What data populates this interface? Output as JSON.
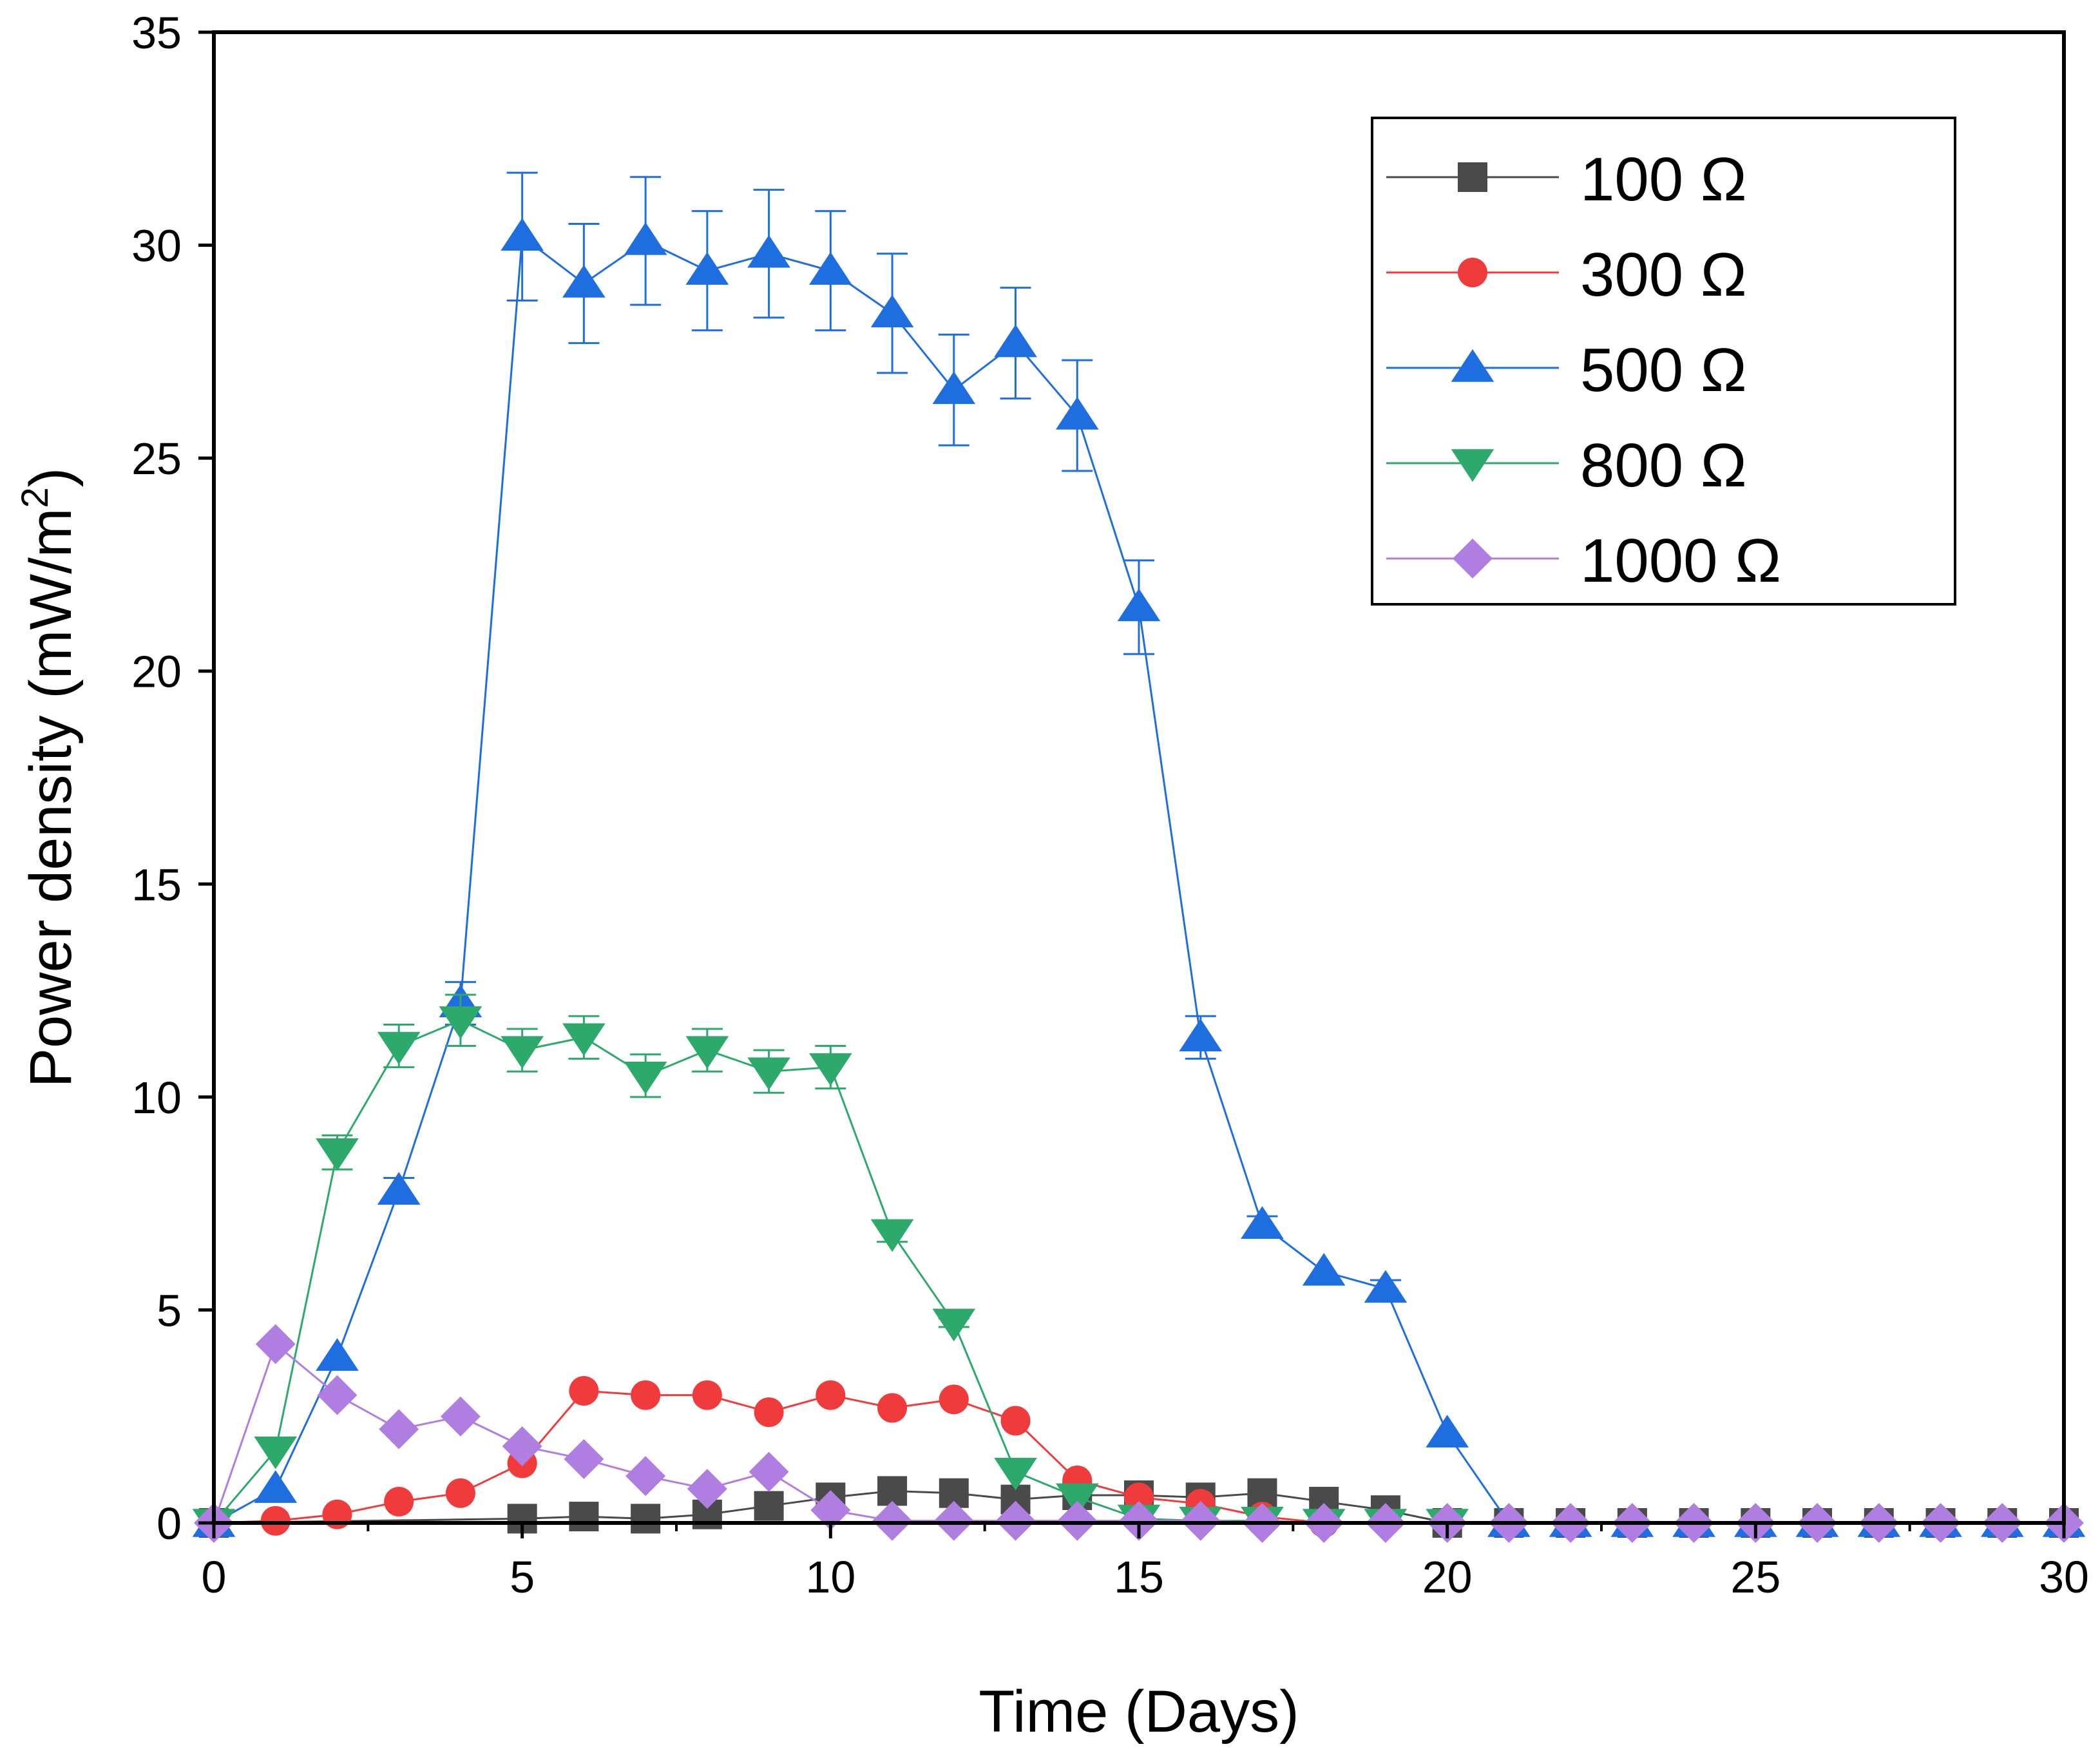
{
  "chart_data": {
    "type": "scatter",
    "xlabel": "Time (Days)",
    "ylabel_main": "Power density (mW/m",
    "ylabel_sup": "2",
    "ylabel_tail": ")",
    "xlim": [
      0,
      30
    ],
    "ylim": [
      0,
      35
    ],
    "x_ticks": [
      0,
      5,
      10,
      15,
      20,
      25,
      30
    ],
    "y_ticks": [
      0,
      5,
      10,
      15,
      20,
      25,
      30,
      35
    ],
    "x_tick_labels": [
      "0",
      "5",
      "10",
      "15",
      "20",
      "25",
      "30"
    ],
    "y_tick_labels": [
      "0",
      "5",
      "10",
      "15",
      "20",
      "25",
      "30",
      "35"
    ],
    "grid": false,
    "legend_position": "top-right",
    "series": [
      {
        "name": "100 Ω",
        "color": "#4a4a4a",
        "marker": "square",
        "x": [
          0,
          5,
          6,
          7,
          8,
          9,
          10,
          11,
          12,
          13,
          14,
          15,
          16,
          17,
          18,
          19,
          20,
          21,
          22,
          23,
          24,
          25,
          26,
          27,
          28,
          29,
          30
        ],
        "y": [
          0,
          0.1,
          0.15,
          0.1,
          0.2,
          0.4,
          0.6,
          0.75,
          0.7,
          0.55,
          0.65,
          0.65,
          0.6,
          0.7,
          0.5,
          0.3,
          0,
          0,
          0,
          0,
          0,
          0,
          0,
          0,
          0,
          0,
          0
        ]
      },
      {
        "name": "300 Ω",
        "color": "#ef3b3b",
        "marker": "circle",
        "x": [
          0,
          1,
          2,
          3,
          4,
          5,
          6,
          7,
          8,
          9,
          10,
          11,
          12,
          13,
          14,
          15,
          16,
          17,
          18
        ],
        "y": [
          0,
          0.05,
          0.2,
          0.5,
          0.7,
          1.4,
          3.1,
          3.0,
          3.0,
          2.6,
          3.0,
          2.7,
          2.9,
          2.4,
          1.0,
          0.6,
          0.45,
          0.15,
          0
        ]
      },
      {
        "name": "500 Ω",
        "color": "#1f6ee0",
        "marker": "triangle-up",
        "x": [
          0,
          1,
          2,
          3,
          4,
          5,
          6,
          7,
          8,
          9,
          10,
          11,
          12,
          13,
          14,
          15,
          16,
          17,
          18,
          19,
          20,
          21,
          22,
          23,
          24,
          25,
          26,
          27,
          28,
          29,
          30
        ],
        "y": [
          0,
          0.8,
          3.9,
          7.8,
          12.2,
          30.2,
          29.1,
          30.1,
          29.4,
          29.8,
          29.4,
          28.4,
          26.6,
          27.7,
          26.0,
          21.5,
          11.4,
          7.0,
          5.9,
          5.5,
          2.1,
          0,
          0,
          0,
          0,
          0,
          0,
          0,
          0,
          0,
          0
        ],
        "error": [
          0,
          0,
          0,
          0.3,
          0.5,
          1.5,
          1.4,
          1.5,
          1.4,
          1.5,
          1.4,
          1.4,
          1.3,
          1.3,
          1.3,
          1.1,
          0.5,
          0.2,
          0,
          0.2,
          0,
          0,
          0,
          0,
          0,
          0,
          0,
          0,
          0,
          0,
          0
        ]
      },
      {
        "name": "800 Ω",
        "color": "#2ea96c",
        "marker": "triangle-down",
        "x": [
          0,
          1,
          2,
          3,
          4,
          5,
          6,
          7,
          8,
          9,
          10,
          11,
          12,
          13,
          14,
          15,
          16,
          17,
          18,
          19,
          20
        ],
        "y": [
          0,
          1.7,
          8.7,
          11.2,
          11.8,
          11.1,
          11.4,
          10.5,
          11.1,
          10.6,
          10.7,
          6.8,
          4.7,
          1.2,
          0.6,
          0.1,
          0.05,
          0.05,
          0,
          0,
          0
        ],
        "error": [
          0,
          0,
          0.4,
          0.5,
          0.6,
          0.5,
          0.5,
          0.5,
          0.5,
          0.5,
          0.5,
          0.2,
          0.1,
          0,
          0,
          0,
          0,
          0,
          0,
          0,
          0
        ]
      },
      {
        "name": "1000 Ω",
        "color": "#b07ee0",
        "marker": "diamond",
        "x": [
          0,
          1,
          2,
          3,
          4,
          5,
          6,
          7,
          8,
          9,
          10,
          11,
          12,
          13,
          14,
          15,
          16,
          17,
          18,
          19,
          20,
          21,
          22,
          23,
          24,
          25,
          26,
          27,
          28,
          29,
          30
        ],
        "y": [
          0,
          4.2,
          3.0,
          2.2,
          2.5,
          1.8,
          1.5,
          1.1,
          0.8,
          1.2,
          0.3,
          0.05,
          0.05,
          0.05,
          0.05,
          0.05,
          0.05,
          0,
          0,
          0,
          0,
          0,
          0,
          0,
          0,
          0,
          0,
          0,
          0,
          0,
          0
        ]
      }
    ]
  }
}
